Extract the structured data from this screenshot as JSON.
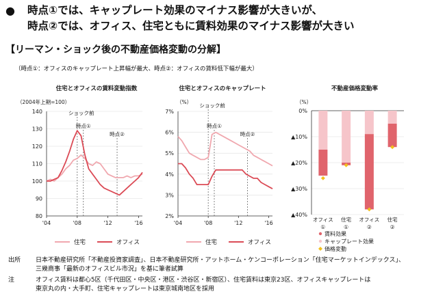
{
  "header": {
    "bullet": "●",
    "line1": "時点①では、キャップレート効果のマイナス影響が大きいが、",
    "line2": "時点②では、オフィス、住宅ともに賃料効果のマイナス影響が大きい"
  },
  "section_title": "【リーマン・ショック後の不動産価格変動の分解】",
  "subtitle": "（時点①：オフィスのキャップレート上昇幅が最大、時点②：オフィスの賃料低下幅が最大）",
  "colors": {
    "residential": "#f0a7ae",
    "office": "#db4a55",
    "cap_effect": "#f6c5ca",
    "rent_effect": "#e0646c",
    "price_marker": "#f2c01e",
    "axis": "#333333",
    "grid": "#dddddd"
  },
  "chart_data": [
    {
      "type": "line",
      "title": "住宅とオフィスの賃料変動指数",
      "ylabel": "（2004年上期=100）",
      "ylim": [
        80,
        140
      ],
      "yticks": [
        "80",
        "90",
        "100",
        "110",
        "120",
        "130",
        "140"
      ],
      "xlim": [
        2004,
        2016.5
      ],
      "xticks": [
        "'04",
        "'08",
        "'12",
        "'16"
      ],
      "annotations": [
        "ショック前",
        "時点①",
        "時点②"
      ],
      "annotation_years": [
        2008,
        2008.8,
        2013.2
      ],
      "series": [
        {
          "name": "住宅",
          "x": [
            2004,
            2004.5,
            2005,
            2005.5,
            2006,
            2006.5,
            2007,
            2007.5,
            2008,
            2008.5,
            2009,
            2009.5,
            2010,
            2010.5,
            2011,
            2011.5,
            2012,
            2012.5,
            2013,
            2013.5,
            2014,
            2014.5,
            2015,
            2015.5,
            2016,
            2016.5
          ],
          "values": [
            100,
            101,
            100,
            102,
            104,
            107,
            109,
            112,
            113,
            115,
            113,
            110,
            109,
            111,
            110,
            107,
            104,
            103,
            102,
            102,
            102,
            103,
            102,
            103,
            103,
            104
          ]
        },
        {
          "name": "オフィス",
          "x": [
            2004,
            2004.5,
            2005,
            2005.5,
            2006,
            2006.5,
            2007,
            2007.5,
            2008,
            2008.5,
            2009,
            2009.5,
            2010,
            2010.5,
            2011,
            2011.5,
            2012,
            2012.5,
            2013,
            2013.5,
            2014,
            2014.5,
            2015,
            2015.5,
            2016,
            2016.5
          ],
          "values": [
            100,
            100,
            101,
            102,
            106,
            111,
            117,
            124,
            129,
            126,
            115,
            107,
            104,
            101,
            98,
            96,
            95,
            94,
            93,
            92,
            94,
            96,
            98,
            100,
            102,
            105
          ]
        }
      ]
    },
    {
      "type": "line",
      "title": "住宅とオフィスのキャップレート",
      "ylabel": "（%）",
      "ylim": [
        2,
        7
      ],
      "yticks": [
        "2%",
        "3%",
        "4%",
        "5%",
        "6%",
        "7%"
      ],
      "xlim": [
        2004,
        2016.5
      ],
      "xticks": [
        "'04",
        "'08",
        "'12",
        "'16"
      ],
      "annotations": [
        "ショック前",
        "時点①",
        "時点②"
      ],
      "annotation_years": [
        2008,
        2008.8,
        2013.2
      ],
      "series": [
        {
          "name": "住宅",
          "x": [
            2004,
            2004.5,
            2005,
            2005.5,
            2006,
            2006.5,
            2007,
            2007.5,
            2008,
            2008.5,
            2009,
            2009.5,
            2010,
            2010.5,
            2011,
            2011.5,
            2012,
            2012.5,
            2013,
            2013.5,
            2014,
            2014.5,
            2015,
            2015.5,
            2016,
            2016.5
          ],
          "values": [
            5.8,
            5.6,
            5.3,
            5.0,
            4.9,
            4.8,
            4.7,
            4.7,
            4.8,
            5.9,
            6.0,
            5.9,
            5.8,
            5.7,
            5.6,
            5.5,
            5.4,
            5.3,
            5.2,
            5.1,
            4.9,
            4.8,
            4.7,
            4.6,
            4.5,
            4.4
          ]
        },
        {
          "name": "オフィス",
          "x": [
            2004,
            2004.5,
            2005,
            2005.5,
            2006,
            2006.5,
            2007,
            2007.5,
            2008,
            2008.5,
            2009,
            2009.5,
            2010,
            2010.5,
            2011,
            2011.5,
            2012,
            2012.5,
            2013,
            2013.5,
            2014,
            2014.5,
            2015,
            2015.5,
            2016,
            2016.5
          ],
          "values": [
            4.5,
            4.5,
            4.3,
            4.0,
            3.8,
            3.5,
            3.5,
            3.5,
            3.5,
            3.9,
            4.2,
            4.2,
            4.2,
            4.2,
            4.2,
            4.2,
            4.2,
            4.2,
            4.0,
            3.9,
            3.8,
            3.8,
            3.6,
            3.5,
            3.4,
            3.3
          ]
        }
      ]
    },
    {
      "type": "bar",
      "title": "不動産価格変動率",
      "ylabel": "（%）",
      "ylim": [
        -40,
        0
      ],
      "yticks": [
        "0%",
        "▲10%",
        "▲20%",
        "▲30%",
        "▲40%"
      ],
      "categories": [
        "オフィス①",
        "住宅①",
        "オフィス②",
        "住宅②"
      ],
      "category_labels": [
        [
          "オフィス",
          "①"
        ],
        [
          "住宅",
          "①"
        ],
        [
          "オフィス",
          "②"
        ],
        [
          "住宅",
          "②"
        ]
      ],
      "series": [
        {
          "name": "キャップレート効果",
          "values": [
            -15,
            -20,
            -9,
            -5
          ]
        },
        {
          "name": "賃料効果",
          "values": [
            -10,
            -1,
            -29,
            -9
          ]
        },
        {
          "name": "価格変動",
          "values": [
            -26,
            -21,
            -38,
            -14
          ]
        }
      ],
      "legend": [
        "賃料効果",
        "キャップレート効果",
        "価格変動"
      ]
    }
  ],
  "legend_lines": {
    "residential": "住宅",
    "office": "オフィス"
  },
  "footer": {
    "source_label": "出所",
    "source_text1": "日本不動産研究所「不動産投資家調査」、日本不動産研究所・アットホーム・ケンコーポレーション「住宅マーケットインデックス」、",
    "source_text2": "三幾商事「最新のオフィスビル市況」を基に筆者試算",
    "note_label": "注",
    "note_text1": "オフィス賃料は都心5区（千代田区・中央区・港区・渋谷区・新宿区）、住宅賃料は東京23区、オフィスキャップレートは",
    "note_text2": "東京丸の内・大手町、住宅キャップレートは東京城南地区を採用"
  }
}
